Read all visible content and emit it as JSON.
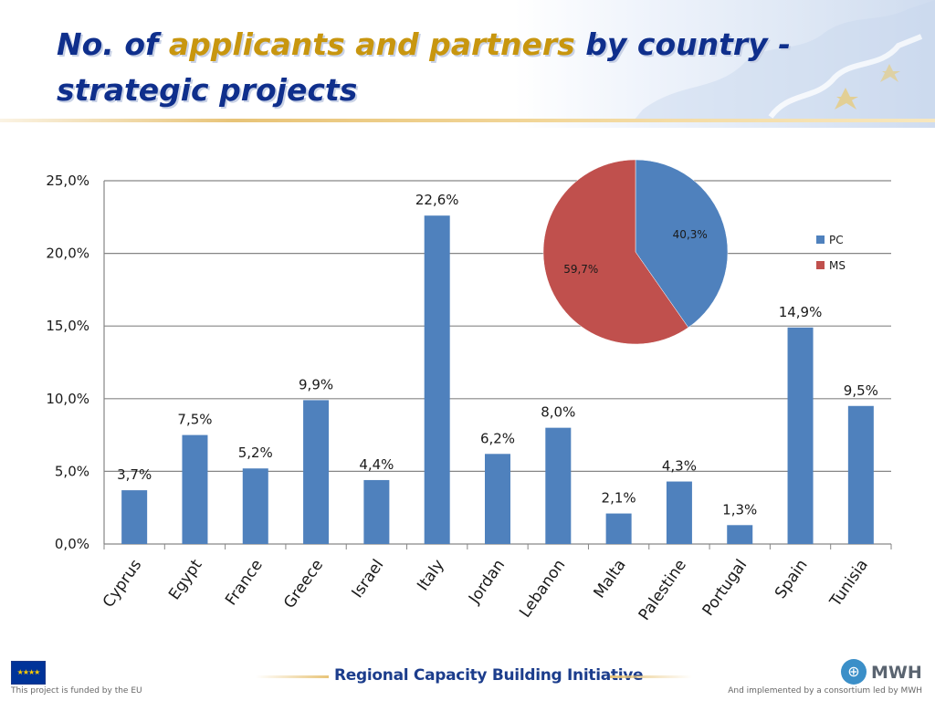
{
  "slide": {
    "title_part1": "No. of ",
    "title_highlight": "applicants and partners",
    "title_part2": " by country -",
    "title_line2": "strategic projects"
  },
  "footer": {
    "funded_text": "This project is funded by the EU",
    "center_title": "Regional Capacity Building Initiative",
    "logo_text": "MWH",
    "implemented_text": "And implemented by a consortium led by MWH",
    "eu_flag_icon": "eu-flag-icon",
    "mwh_icon": "globe-icon"
  },
  "chart_data": [
    {
      "type": "bar",
      "categories": [
        "Cyprus",
        "Egypt",
        "France",
        "Greece",
        "Israel",
        "Italy",
        "Jordan",
        "Lebanon",
        "Malta",
        "Palestine",
        "Portugal",
        "Spain",
        "Tunisia"
      ],
      "values": [
        3.7,
        7.5,
        5.2,
        9.9,
        4.4,
        22.6,
        6.2,
        8.0,
        2.1,
        4.3,
        1.3,
        14.9,
        9.5
      ],
      "data_labels": [
        "3,7%",
        "7,5%",
        "5,2%",
        "9,9%",
        "4,4%",
        "22,6%",
        "6,2%",
        "8,0%",
        "2,1%",
        "4,3%",
        "1,3%",
        "14,9%",
        "9,5%"
      ],
      "ylim": [
        0,
        25
      ],
      "yticks": [
        0,
        5,
        10,
        15,
        20,
        25
      ],
      "ytick_labels": [
        "0,0%",
        "5,0%",
        "10,0%",
        "15,0%",
        "20,0%",
        "25,0%"
      ],
      "grid": true,
      "bar_color": "#4f81bd"
    },
    {
      "type": "pie",
      "slices": [
        {
          "name": "PC",
          "value": 40.3,
          "label": "40,3%",
          "color": "#4f81bd"
        },
        {
          "name": "MS",
          "value": 59.7,
          "label": "59,7%",
          "color": "#c0504d"
        }
      ],
      "legend": "right"
    }
  ]
}
